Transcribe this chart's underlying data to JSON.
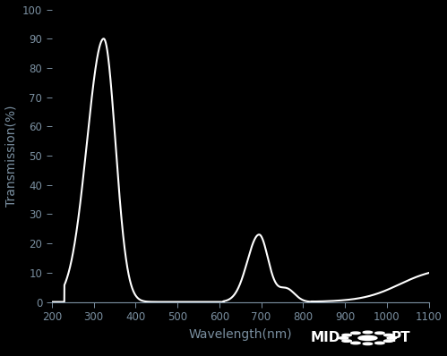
{
  "background_color": "#000000",
  "line_color": "#ffffff",
  "text_color": "#7a8fa0",
  "xlabel": "Wavelength(nm)",
  "ylabel": "Transmission(%)",
  "xlim": [
    200,
    1100
  ],
  "ylim": [
    0,
    100
  ],
  "xticks": [
    200,
    300,
    400,
    500,
    600,
    700,
    800,
    900,
    1000,
    1100
  ],
  "yticks": [
    0,
    10,
    20,
    30,
    40,
    50,
    60,
    70,
    80,
    90,
    100
  ],
  "xlabel_fontsize": 10,
  "ylabel_fontsize": 10,
  "tick_fontsize": 8.5,
  "line_width": 1.5,
  "figsize": [
    4.99,
    3.98
  ],
  "dpi": 100
}
